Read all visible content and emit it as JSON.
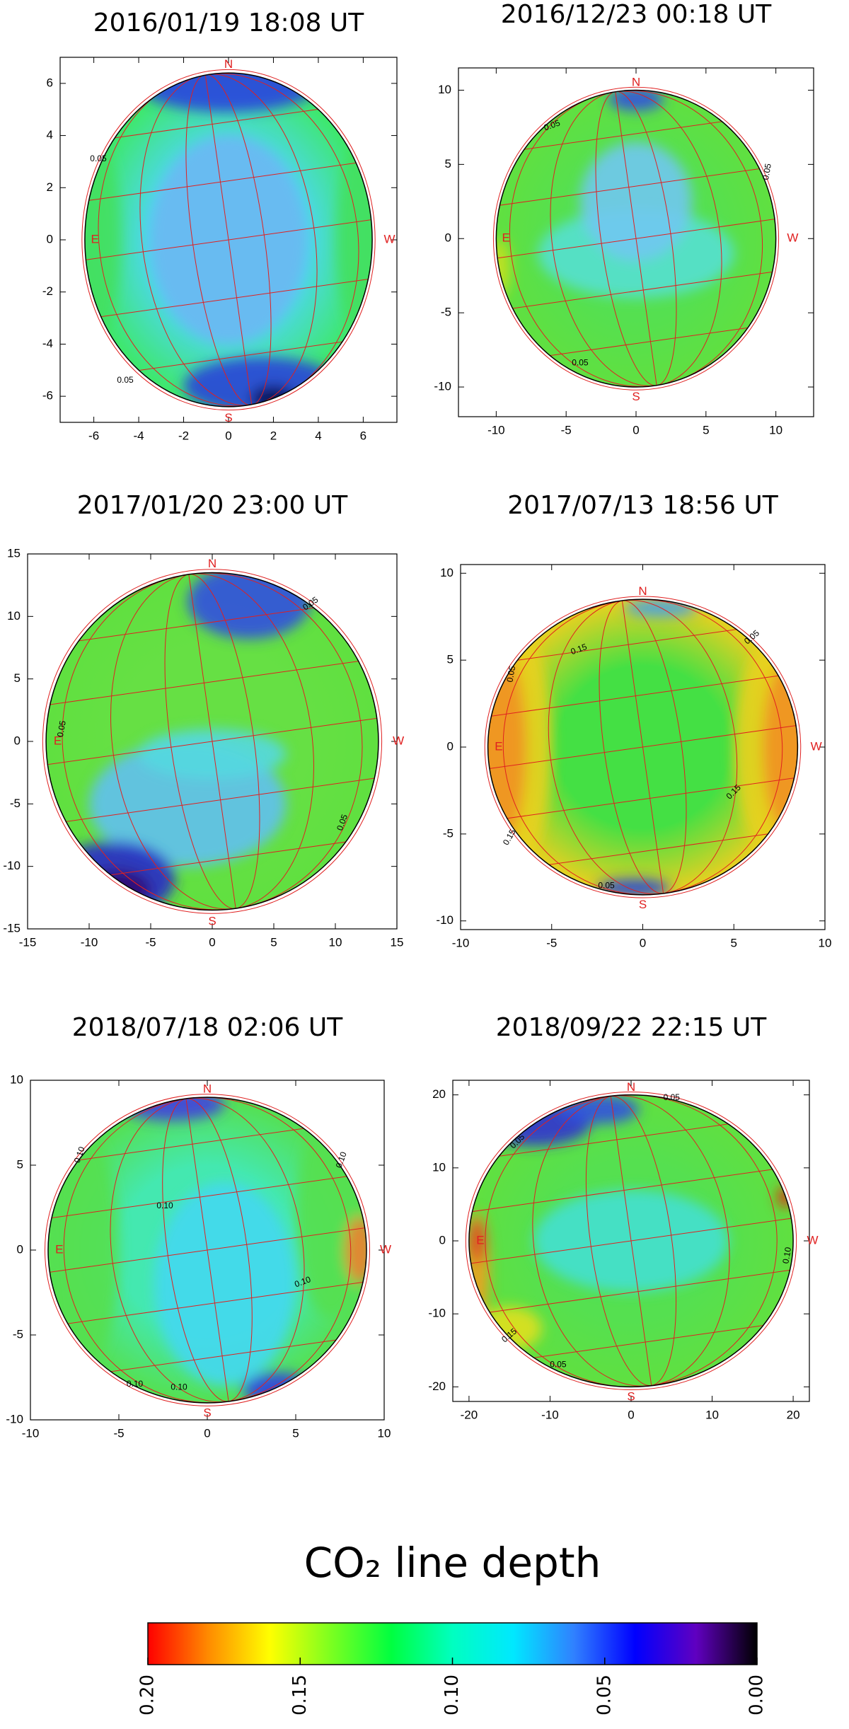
{
  "chart_data": [
    {
      "type": "map",
      "title": "2016/01/19  18:08 UT",
      "xlim": [
        -7.5,
        7.5
      ],
      "ylim": [
        -7,
        7
      ],
      "xticks": [
        -6,
        -4,
        -2,
        0,
        2,
        4,
        6
      ],
      "yticks": [
        -6,
        -4,
        -2,
        0,
        2,
        4,
        6
      ],
      "compass": [
        "N",
        "S",
        "E",
        "W"
      ],
      "contour_labels": [
        "0.05",
        "0.05"
      ]
    },
    {
      "type": "map",
      "title": "2016/12/23  00:18 UT",
      "xlim": [
        -12.7,
        12.7
      ],
      "ylim": [
        -12,
        11.5
      ],
      "xticks": [
        -10,
        -5,
        0,
        5,
        10
      ],
      "yticks": [
        -10,
        -5,
        0,
        5,
        10
      ],
      "compass": [
        "N",
        "S",
        "E",
        "W"
      ],
      "contour_labels": [
        "0.05",
        "0.05",
        "0.05"
      ]
    },
    {
      "type": "map",
      "title": "2017/01/20  23:00 UT",
      "xlim": [
        -15,
        15
      ],
      "ylim": [
        -15,
        15
      ],
      "xticks": [
        -15,
        -10,
        -5,
        0,
        5,
        10,
        15
      ],
      "yticks": [
        -15,
        -10,
        -5,
        0,
        5,
        10,
        15
      ],
      "compass": [
        "N",
        "S",
        "E",
        "W"
      ],
      "contour_labels": [
        "0.05",
        "0.05",
        "0.05"
      ]
    },
    {
      "type": "map",
      "title": "2017/07/13  18:56 UT",
      "xlim": [
        -10,
        10
      ],
      "ylim": [
        -10.5,
        10.5
      ],
      "xticks": [
        -10,
        -5,
        0,
        5,
        10
      ],
      "yticks": [
        -10,
        -5,
        0,
        5,
        10
      ],
      "compass": [
        "N",
        "S",
        "E",
        "W"
      ],
      "contour_labels": [
        "0.15",
        "0.05",
        "0.05",
        "0.15",
        "0.15",
        "0.05"
      ]
    },
    {
      "type": "map",
      "title": "2018/07/18  02:06 UT",
      "xlim": [
        -10,
        10
      ],
      "ylim": [
        -10,
        10
      ],
      "xticks": [
        -10,
        -5,
        0,
        5,
        10
      ],
      "yticks": [
        -10,
        -5,
        0,
        5,
        10
      ],
      "compass": [
        "N",
        "S",
        "E",
        "W"
      ],
      "contour_labels": [
        "0.10",
        "0.10",
        "0.10",
        "0.10",
        "0.10",
        "0.10"
      ]
    },
    {
      "type": "map",
      "title": "2018/09/22  22:15 UT",
      "xlim": [
        -22,
        22
      ],
      "ylim": [
        -22,
        22
      ],
      "xticks": [
        -20,
        -10,
        0,
        10,
        20
      ],
      "yticks": [
        -20,
        -10,
        0,
        10,
        20
      ],
      "compass": [
        "N",
        "S",
        "E",
        "W"
      ],
      "contour_labels": [
        "0.05",
        "0.05",
        "0.05",
        "0.10",
        "0.15"
      ]
    },
    {
      "type": "colorbar",
      "title": "CO₂ line depth",
      "xlim": [
        0.2,
        0
      ],
      "xticks": [
        {
          "value": 0.2,
          "label": "0.20"
        },
        {
          "value": 0.15,
          "label": "0.15"
        },
        {
          "value": 0.1,
          "label": "0.10"
        },
        {
          "value": 0.05,
          "label": "0.05"
        },
        {
          "value": 0,
          "label": "0.00"
        }
      ],
      "colors": [
        "#ff0000",
        "#ff8c00",
        "#ffff00",
        "#7cff20",
        "#00ff40",
        "#00ffc0",
        "#00e8ff",
        "#3080ff",
        "#0000ff",
        "#6000c0",
        "#000000"
      ]
    }
  ]
}
